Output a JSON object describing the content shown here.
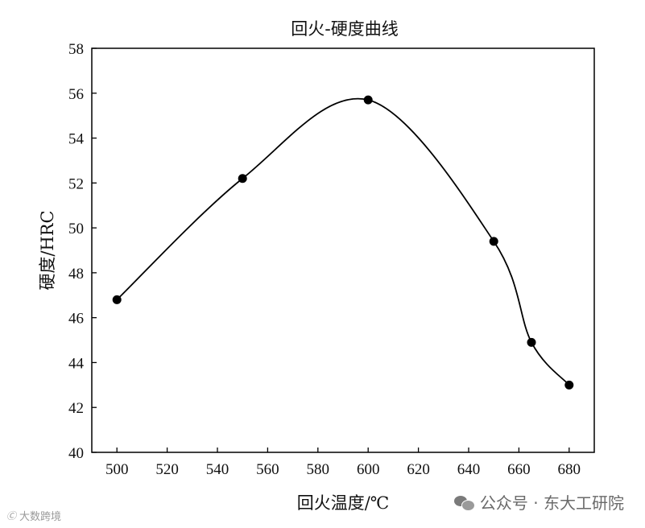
{
  "chart_data": {
    "type": "line",
    "title": "回火-硬度曲线",
    "xlabel": "回火温度/℃",
    "ylabel": "硬度/HRC",
    "xlim": [
      490,
      690
    ],
    "ylim": [
      40,
      58
    ],
    "xticks": [
      500,
      520,
      540,
      560,
      580,
      600,
      620,
      640,
      660,
      680
    ],
    "yticks": [
      40,
      42,
      44,
      46,
      48,
      50,
      52,
      54,
      56,
      58
    ],
    "series": [
      {
        "x": [
          500,
          550,
          600,
          650,
          665,
          680
        ],
        "y": [
          46.8,
          52.2,
          55.7,
          49.4,
          44.9,
          43.0
        ],
        "marker": "circle",
        "smooth": true,
        "color": "#000000"
      }
    ],
    "grid": false,
    "legend": "none"
  },
  "watermark": {
    "right_text": "公众号 · 东大工研院",
    "right_icon": "wechat-icon",
    "left_text": "大数跨境",
    "left_icon": "brand-logo-icon"
  }
}
